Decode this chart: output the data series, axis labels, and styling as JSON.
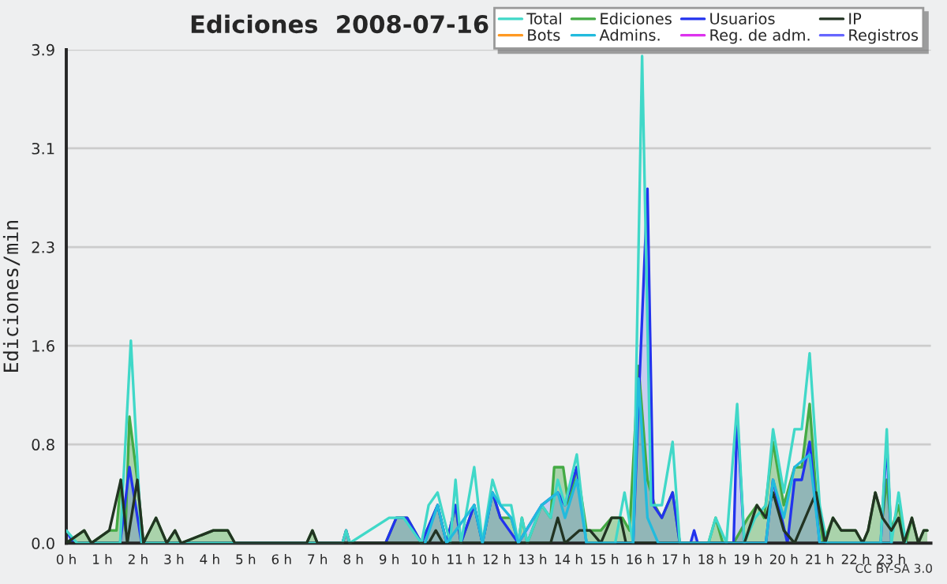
{
  "chart_data": {
    "type": "line",
    "title": "Ediciones  2008-07-16",
    "ylabel": "Ediciones/min",
    "annotations": [
      "CC BY-SA 3.0"
    ],
    "xlim": [
      0,
      24.1
    ],
    "ylim": [
      0,
      3.9
    ],
    "xticks": [
      {
        "value": 0,
        "label": "0 h"
      },
      {
        "value": 1,
        "label": "1 h"
      },
      {
        "value": 2,
        "label": "2 h"
      },
      {
        "value": 3,
        "label": "3 h"
      },
      {
        "value": 4,
        "label": "4 h"
      },
      {
        "value": 5,
        "label": "5 h"
      },
      {
        "value": 6,
        "label": "6 h"
      },
      {
        "value": 7,
        "label": "7 h"
      },
      {
        "value": 8,
        "label": "8 h"
      },
      {
        "value": 9,
        "label": "9 h"
      },
      {
        "value": 10,
        "label": "10 h"
      },
      {
        "value": 11,
        "label": "11 h"
      },
      {
        "value": 12,
        "label": "12 h"
      },
      {
        "value": 13,
        "label": "13 h"
      },
      {
        "value": 14,
        "label": "14 h"
      },
      {
        "value": 15,
        "label": "15 h"
      },
      {
        "value": 16,
        "label": "16 h"
      },
      {
        "value": 17,
        "label": "17 h"
      },
      {
        "value": 18,
        "label": "18 h"
      },
      {
        "value": 19,
        "label": "19 h"
      },
      {
        "value": 20,
        "label": "20 h"
      },
      {
        "value": 21,
        "label": "21 h"
      },
      {
        "value": 22,
        "label": "22 h"
      },
      {
        "value": 23,
        "label": "23 h"
      }
    ],
    "yticks": [
      {
        "value": 0,
        "label": "0.0"
      },
      {
        "value": 0.78,
        "label": "0.8"
      },
      {
        "value": 1.56,
        "label": "1.6"
      },
      {
        "value": 2.34,
        "label": "2.3"
      },
      {
        "value": 3.12,
        "label": "3.1"
      },
      {
        "value": 3.9,
        "label": "3.9"
      }
    ],
    "grid": "y",
    "legend": "top right",
    "series": [
      {
        "name": "Total",
        "color": "#40d8c8",
        "x": [
          0,
          0.3,
          1.5,
          1.8,
          2.1,
          7.7,
          7.8,
          7.9,
          9.0,
          9.4,
          9.9,
          10.1,
          10.35,
          10.7,
          10.85,
          11.0,
          11.37,
          11.6,
          11.88,
          12.1,
          12.4,
          12.6,
          12.7,
          12.85,
          13.25,
          13.5,
          13.7,
          13.9,
          14.23,
          14.5,
          15.3,
          15.56,
          15.8,
          16.05,
          16.3,
          16.6,
          16.9,
          17.1,
          17.9,
          18.1,
          18.4,
          18.7,
          18.9,
          19.2,
          19.5,
          19.7,
          20.0,
          20.3,
          20.5,
          20.72,
          21.0,
          21.2,
          22.7,
          22.87,
          23.0,
          23.2,
          23.4
        ],
        "values": [
          0.1,
          0,
          0,
          1.6,
          0,
          0,
          0.1,
          0,
          0.2,
          0.2,
          0,
          0.3,
          0.4,
          0,
          0.5,
          0,
          0.6,
          0,
          0.5,
          0.3,
          0.3,
          0,
          0.2,
          0,
          0.3,
          0.2,
          0.5,
          0.3,
          0.7,
          0,
          0,
          0.4,
          0,
          3.85,
          0.3,
          0.3,
          0.8,
          0,
          0,
          0.2,
          0,
          1.1,
          0,
          0.2,
          0.3,
          0.9,
          0.4,
          0.9,
          0.9,
          1.5,
          0.3,
          0,
          0,
          0.9,
          0,
          0.4,
          0
        ]
      },
      {
        "name": "Ediciones",
        "type": "area",
        "color": "#44aa44",
        "x": [
          0,
          0.5,
          0.7,
          1.2,
          1.4,
          1.52,
          1.65,
          1.76,
          1.98,
          2.15,
          2.5,
          2.8,
          3.03,
          3.2,
          4.1,
          4.5,
          4.7,
          6.7,
          6.86,
          7.0,
          7.7,
          7.8,
          7.9,
          8.9,
          9.2,
          9.5,
          9.7,
          9.9,
          10.35,
          10.6,
          10.85,
          11.0,
          11.37,
          11.6,
          11.88,
          12.1,
          12.4,
          12.6,
          12.7,
          12.85,
          13.25,
          13.5,
          13.6,
          13.85,
          14.0,
          14.23,
          14.5,
          14.9,
          15.2,
          15.5,
          15.7,
          15.95,
          16.2,
          16.4,
          16.6,
          16.9,
          17.1,
          17.9,
          18.1,
          18.3,
          18.6,
          18.8,
          19.0,
          19.25,
          19.45,
          19.7,
          20.0,
          20.3,
          20.5,
          20.72,
          20.9,
          21.1,
          21.37,
          21.6,
          22.0,
          22.2,
          22.35,
          22.55,
          22.75,
          22.87,
          23.0,
          23.2,
          23.4,
          23.57,
          23.75,
          23.9,
          24
        ],
        "values": [
          0,
          0.1,
          0,
          0.1,
          0.1,
          0.5,
          0.1,
          1.0,
          0.5,
          0,
          0.2,
          0,
          0.1,
          0,
          0.1,
          0.1,
          0,
          0,
          0.1,
          0,
          0,
          0.1,
          0,
          0,
          0.2,
          0.2,
          0.1,
          0,
          0.3,
          0,
          0.3,
          0,
          0.3,
          0,
          0.4,
          0.2,
          0.2,
          0,
          0.2,
          0,
          0.3,
          0.2,
          0.6,
          0.6,
          0.3,
          0.6,
          0.1,
          0.1,
          0.2,
          0.2,
          0.1,
          1.4,
          0.5,
          0.3,
          0.2,
          0.4,
          0,
          0,
          0.2,
          0,
          0,
          0.1,
          0.2,
          0.3,
          0.2,
          0.8,
          0.3,
          0.6,
          0.6,
          1.1,
          0.4,
          0,
          0.2,
          0.1,
          0.1,
          0,
          0.1,
          0.4,
          0.2,
          0.5,
          0.1,
          0.3,
          0,
          0.2,
          0,
          0.1,
          0.1
        ]
      },
      {
        "name": "Usuarios",
        "type": "area",
        "color": "#2233ee",
        "x": [
          0,
          0.2,
          1.5,
          1.76,
          2.1,
          7.7,
          7.8,
          7.9,
          8.9,
          9.2,
          9.5,
          9.7,
          9.9,
          10.35,
          10.6,
          10.85,
          11.0,
          11.37,
          11.6,
          11.88,
          12.1,
          12.6,
          13.25,
          13.7,
          13.9,
          14.23,
          14.5,
          15.8,
          15.95,
          16.2,
          16.36,
          16.6,
          16.9,
          17.1,
          17.4,
          17.5,
          17.6,
          18.6,
          18.7,
          18.9,
          19.5,
          19.7,
          20.1,
          20.3,
          20.5,
          20.72,
          21.0,
          22.7,
          22.87,
          23.0,
          23.4
        ],
        "values": [
          0.1,
          0,
          0,
          0.6,
          0,
          0,
          0.1,
          0,
          0,
          0.2,
          0.2,
          0.1,
          0,
          0.3,
          0,
          0.3,
          0,
          0.3,
          0,
          0.4,
          0.2,
          0,
          0.3,
          0.4,
          0.3,
          0.6,
          0,
          0,
          1.1,
          2.8,
          0.3,
          0.2,
          0.4,
          0,
          0,
          0.1,
          0,
          0,
          1.0,
          0,
          0,
          0.5,
          0,
          0.5,
          0.5,
          0.8,
          0,
          0,
          0.8,
          0,
          0
        ]
      },
      {
        "name": "IP",
        "color": "#223322",
        "x": [
          0,
          0.5,
          0.7,
          1.2,
          1.52,
          1.7,
          1.98,
          2.15,
          2.5,
          2.8,
          3.03,
          3.2,
          4.1,
          4.5,
          4.7,
          6.7,
          6.86,
          7.0,
          10.1,
          10.3,
          10.5,
          13.5,
          13.7,
          13.9,
          14.3,
          14.6,
          14.9,
          15.2,
          15.45,
          15.6,
          18.9,
          19.25,
          19.5,
          19.7,
          20.0,
          20.3,
          20.9,
          21.15,
          21.37,
          21.6,
          22.0,
          22.2,
          22.35,
          22.55,
          22.75,
          23.0,
          23.2,
          23.35,
          23.57,
          23.75,
          23.9,
          24
        ],
        "values": [
          0,
          0.1,
          0,
          0.1,
          0.5,
          0,
          0.5,
          0,
          0.2,
          0,
          0.1,
          0,
          0.1,
          0.1,
          0,
          0,
          0.1,
          0,
          0,
          0.1,
          0,
          0,
          0.2,
          0,
          0.1,
          0.1,
          0,
          0.2,
          0.2,
          0,
          0,
          0.3,
          0.2,
          0.4,
          0.1,
          0,
          0.4,
          0,
          0.2,
          0.1,
          0.1,
          0,
          0.1,
          0.4,
          0.2,
          0.1,
          0.2,
          0,
          0.2,
          0,
          0.1,
          0.1
        ]
      },
      {
        "name": "Bots",
        "color": "#ff9922"
      },
      {
        "name": "Admins.",
        "color": "#22bbdd",
        "x": [
          10.0,
          10.35,
          10.6,
          11.37,
          11.6,
          11.88,
          12.1,
          12.4,
          12.6,
          13.25,
          13.7,
          13.9,
          14.23,
          14.5,
          15.8,
          15.95,
          16.2,
          16.5,
          19.5,
          19.7,
          20.0,
          20.3,
          20.72,
          21.0,
          23.0
        ],
        "values": [
          0,
          0.3,
          0,
          0.3,
          0,
          0.4,
          0.3,
          0.2,
          0,
          0.3,
          0.4,
          0.2,
          0.5,
          0,
          0,
          1.3,
          0.2,
          0,
          0,
          0.5,
          0.2,
          0.6,
          0.7,
          0,
          0
        ]
      },
      {
        "name": "Reg. de adm.",
        "color": "#dd33ee"
      },
      {
        "name": "Registros",
        "color": "#6666ff"
      }
    ]
  }
}
